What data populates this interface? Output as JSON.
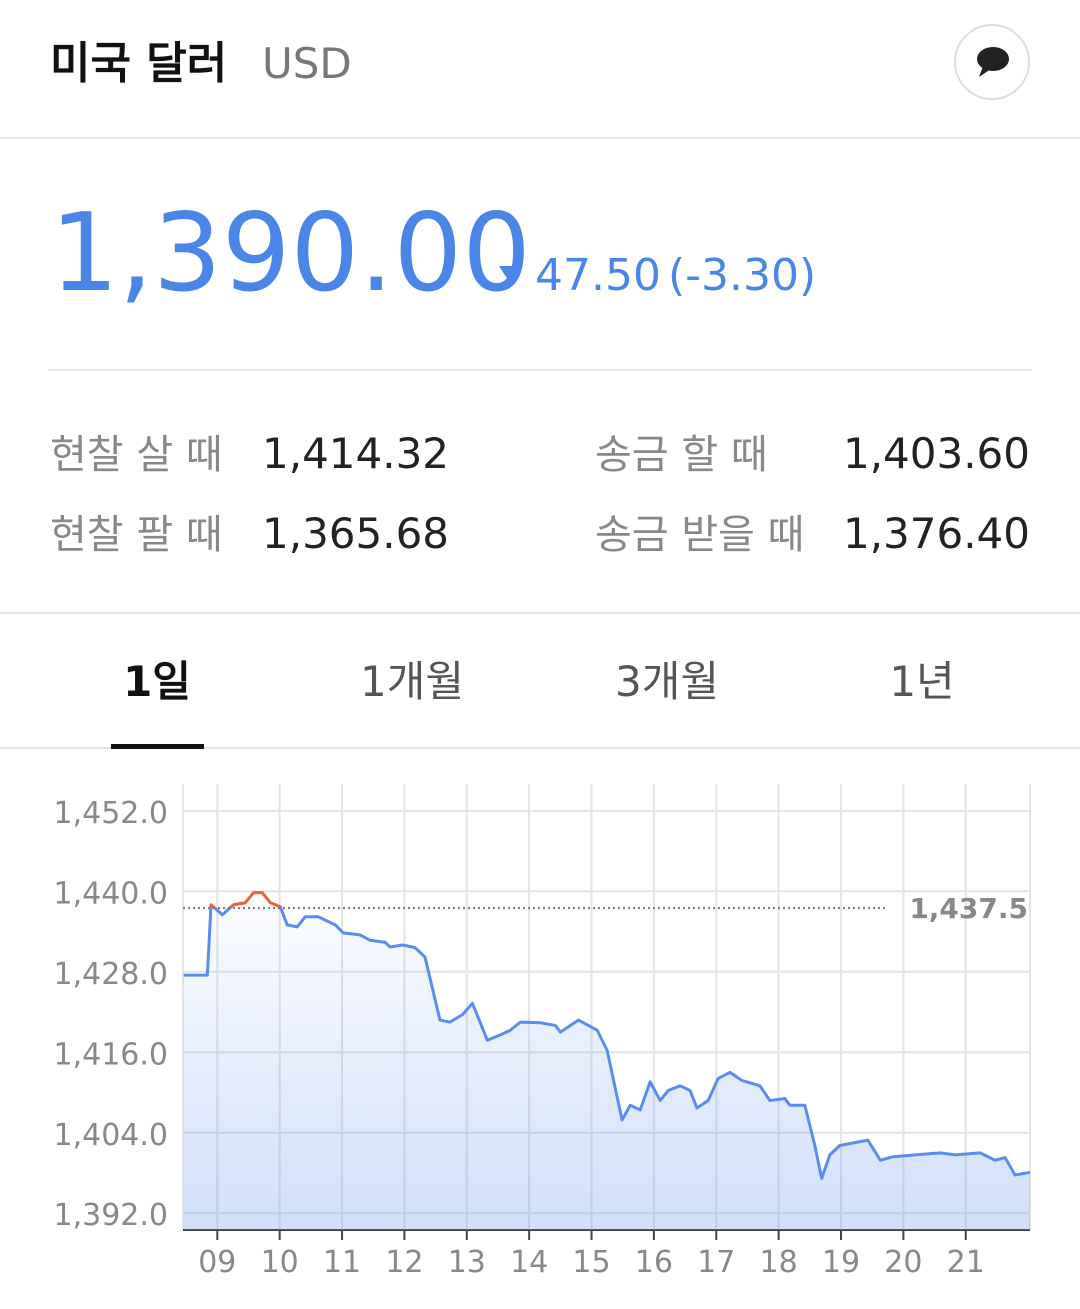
{
  "header": {
    "title": "미국 달러",
    "code": "USD"
  },
  "quote": {
    "price": "1,390.00",
    "change": "47.50",
    "change_rate": "(-3.30)"
  },
  "rates": [
    {
      "label": "현찰 살 때",
      "value": "1,414.32"
    },
    {
      "label": "현찰 팔 때",
      "value": "1,365.68"
    },
    {
      "label": "송금 할 때",
      "value": "1,403.60"
    },
    {
      "label": "송금 받을 때",
      "value": "1,376.40"
    }
  ],
  "tabs": [
    "1일",
    "1개월",
    "3개월",
    "1년"
  ],
  "chart_data": {
    "type": "line",
    "x": [
      8.46,
      8.84,
      8.9,
      9.08,
      9.26,
      9.45,
      9.58,
      9.72,
      9.85,
      10.01,
      10.12,
      10.28,
      10.41,
      10.62,
      10.89,
      11.02,
      11.29,
      11.45,
      11.69,
      11.77,
      11.97,
      12.17,
      12.33,
      12.57,
      12.73,
      12.93,
      13.09,
      13.33,
      13.54,
      13.7,
      13.86,
      14.18,
      14.42,
      14.5,
      14.79,
      15.09,
      15.25,
      15.49,
      15.62,
      15.78,
      15.94,
      16.1,
      16.23,
      16.42,
      16.58,
      16.69,
      16.87,
      17.03,
      17.22,
      17.41,
      17.7,
      17.86,
      18.1,
      18.18,
      18.42,
      18.58,
      18.69,
      18.82,
      18.98,
      19.43,
      19.63,
      19.82,
      20.19,
      20.59,
      20.83,
      21.23,
      21.47,
      21.63,
      21.79,
      22.03
    ],
    "series": [
      {
        "name": "USD",
        "color": "#5b8def",
        "values": [
          1427.5,
          1427.5,
          1438,
          1436.5,
          1438,
          1438.3,
          1439.8,
          1439.8,
          1438.3,
          1437.7,
          1435,
          1434.7,
          1436.2,
          1436.2,
          1435,
          1433.8,
          1433.5,
          1432.7,
          1432.4,
          1431.7,
          1432,
          1431.6,
          1430.2,
          1420.8,
          1420.5,
          1421.6,
          1423.3,
          1417.8,
          1418.6,
          1419.3,
          1420.5,
          1420.4,
          1420,
          1419,
          1420.8,
          1419.3,
          1416.3,
          1405.9,
          1408.1,
          1407.4,
          1411.6,
          1408.8,
          1410.3,
          1411,
          1410.3,
          1407.7,
          1408.8,
          1412.1,
          1413,
          1411.8,
          1411,
          1408.8,
          1409.1,
          1408.1,
          1408.1,
          1402.1,
          1397.2,
          1400.7,
          1402.1,
          1402.9,
          1399.9,
          1400.4,
          1400.7,
          1401,
          1400.7,
          1401,
          1399.9,
          1400.3,
          1397.7,
          1398.1
        ]
      }
    ],
    "above_color": "#e8603c",
    "reference": {
      "value": 1437.5,
      "label": "1,437.5"
    },
    "xlim": [
      8.45,
      22.03
    ],
    "xticks": [
      {
        "value": 9,
        "label": "09"
      },
      10,
      11,
      12,
      13,
      14,
      15,
      16,
      17,
      18,
      19,
      20,
      21
    ],
    "ylim": [
      1389.5,
      1456
    ],
    "yticks": [
      {
        "value": 1392,
        "label": "1,392.0"
      },
      {
        "value": 1404,
        "label": "1,404.0"
      },
      {
        "value": 1416,
        "label": "1,416.0"
      },
      {
        "value": 1428,
        "label": "1,428.0"
      },
      {
        "value": 1440,
        "label": "1,440.0"
      },
      {
        "value": 1452,
        "label": "1,452.0"
      }
    ],
    "grid": true
  }
}
